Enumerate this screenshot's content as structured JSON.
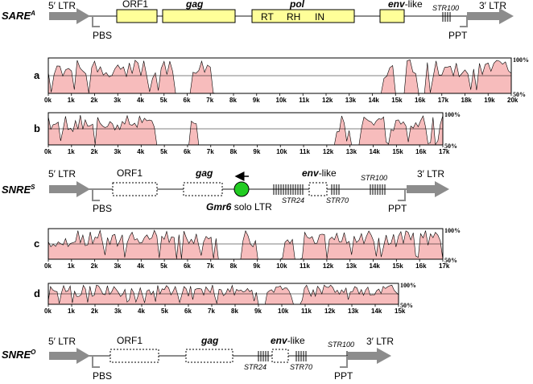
{
  "elements": {
    "sare": {
      "name": "SARE",
      "sup": "A"
    },
    "snre_s": {
      "name": "SNRE",
      "sup": "S"
    },
    "snre_o": {
      "name": "SNRE",
      "sup": "O"
    }
  },
  "labels": {
    "ltr5": "5′ LTR",
    "ltr3": "3′ LTR",
    "pbs": "PBS",
    "ppt": "PPT",
    "orf1": "ORF1",
    "gag": "gag",
    "pol": "pol",
    "rt": "RT",
    "rh": "RH",
    "in": "IN",
    "env_italic": "env",
    "env_suffix": "-like",
    "str100": "STR100",
    "str24": "STR24",
    "str70": "STR70",
    "gmr6": "Gmr6",
    "gmr6_suffix": " solo LTR"
  },
  "panels": [
    "a",
    "b",
    "c",
    "d"
  ],
  "pct_labels": {
    "high": "100%",
    "low": "50%"
  },
  "axis_ticks": {
    "a": [
      "0k",
      "1k",
      "2k",
      "3k",
      "4k",
      "5k",
      "6k",
      "7k",
      "8k",
      "9k",
      "10k",
      "11k",
      "12k",
      "13k",
      "14k",
      "15k",
      "16k",
      "17k",
      "18k",
      "19k",
      "20k"
    ],
    "b": [
      "0k",
      "1k",
      "2k",
      "3k",
      "4k",
      "5k",
      "6k",
      "7k",
      "8k",
      "9k",
      "10k",
      "11k",
      "12k",
      "13k",
      "14k",
      "15k",
      "16k",
      "17k"
    ],
    "c": [
      "0k",
      "1k",
      "2k",
      "3k",
      "4k",
      "5k",
      "6k",
      "7k",
      "8k",
      "9k",
      "10k",
      "11k",
      "12k",
      "13k",
      "14k",
      "15k",
      "16k",
      "17k"
    ],
    "d": [
      "0k",
      "1k",
      "2k",
      "3k",
      "4k",
      "5k",
      "6k",
      "7k",
      "8k",
      "9k",
      "10k",
      "11k",
      "12k",
      "13k",
      "14k",
      "15k"
    ]
  },
  "colors": {
    "backbone": "#8c8c8c",
    "gene_fill": "#ffff99",
    "similarity_fill": "#f7bcbc",
    "similarity_line": "#000000",
    "gmr6_fill": "#22cc22"
  }
}
